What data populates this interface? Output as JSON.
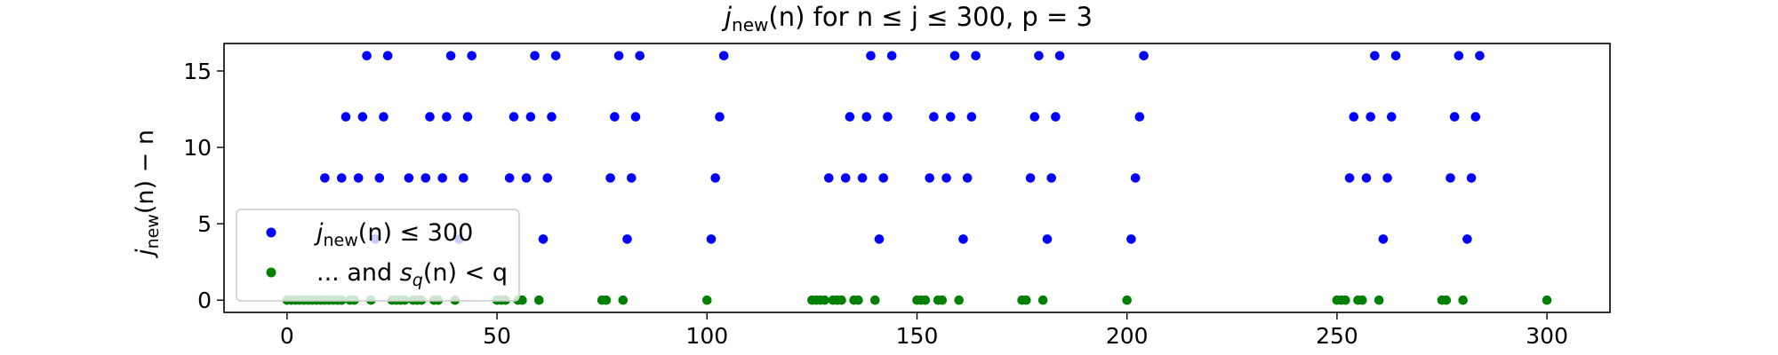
{
  "chart_data": {
    "type": "scatter",
    "title": "j_new(n) for n ≤ j ≤ 300, p = 3",
    "title_parts": {
      "j": "j",
      "sub": "new",
      "rest": "(n) for n ≤ j ≤ 300, p = 3"
    },
    "xlabel": "",
    "ylabel": "j_new(n) − n",
    "ylabel_parts": {
      "j": "j",
      "sub": "new",
      "rest": "(n) − n"
    },
    "xlim": [
      -15,
      315
    ],
    "ylim": [
      -0.8,
      16.8
    ],
    "x_ticks": [
      0,
      50,
      100,
      150,
      200,
      250,
      300
    ],
    "x_tick_labels": [
      "0",
      "50",
      "100",
      "150",
      "200",
      "250",
      "300"
    ],
    "y_ticks": [
      0,
      5,
      10,
      15
    ],
    "y_tick_labels": [
      "0",
      "5",
      "10",
      "15"
    ],
    "grid": false,
    "legend_position": "lower-left",
    "series": [
      {
        "name": "j_new(n) ≤ 300",
        "legend_parts": {
          "j": "j",
          "sub": "new",
          "rest": "(n) ≤ 300"
        },
        "color": "#0000ff",
        "points": [
          [
            19,
            16
          ],
          [
            24,
            16
          ],
          [
            39,
            16
          ],
          [
            44,
            16
          ],
          [
            59,
            16
          ],
          [
            64,
            16
          ],
          [
            79,
            16
          ],
          [
            84,
            16
          ],
          [
            104,
            16
          ],
          [
            139,
            16
          ],
          [
            144,
            16
          ],
          [
            159,
            16
          ],
          [
            164,
            16
          ],
          [
            179,
            16
          ],
          [
            184,
            16
          ],
          [
            204,
            16
          ],
          [
            259,
            16
          ],
          [
            264,
            16
          ],
          [
            279,
            16
          ],
          [
            284,
            16
          ],
          [
            14,
            12
          ],
          [
            18,
            12
          ],
          [
            23,
            12
          ],
          [
            34,
            12
          ],
          [
            38,
            12
          ],
          [
            43,
            12
          ],
          [
            54,
            12
          ],
          [
            58,
            12
          ],
          [
            63,
            12
          ],
          [
            78,
            12
          ],
          [
            83,
            12
          ],
          [
            103,
            12
          ],
          [
            134,
            12
          ],
          [
            138,
            12
          ],
          [
            143,
            12
          ],
          [
            154,
            12
          ],
          [
            158,
            12
          ],
          [
            163,
            12
          ],
          [
            178,
            12
          ],
          [
            183,
            12
          ],
          [
            203,
            12
          ],
          [
            254,
            12
          ],
          [
            258,
            12
          ],
          [
            263,
            12
          ],
          [
            278,
            12
          ],
          [
            283,
            12
          ],
          [
            9,
            8
          ],
          [
            13,
            8
          ],
          [
            17,
            8
          ],
          [
            22,
            8
          ],
          [
            29,
            8
          ],
          [
            33,
            8
          ],
          [
            37,
            8
          ],
          [
            42,
            8
          ],
          [
            53,
            8
          ],
          [
            57,
            8
          ],
          [
            62,
            8
          ],
          [
            77,
            8
          ],
          [
            82,
            8
          ],
          [
            102,
            8
          ],
          [
            129,
            8
          ],
          [
            133,
            8
          ],
          [
            137,
            8
          ],
          [
            142,
            8
          ],
          [
            153,
            8
          ],
          [
            157,
            8
          ],
          [
            162,
            8
          ],
          [
            177,
            8
          ],
          [
            182,
            8
          ],
          [
            202,
            8
          ],
          [
            253,
            8
          ],
          [
            257,
            8
          ],
          [
            262,
            8
          ],
          [
            277,
            8
          ],
          [
            282,
            8
          ],
          [
            21,
            4
          ],
          [
            41,
            4
          ],
          [
            61,
            4
          ],
          [
            81,
            4
          ],
          [
            101,
            4
          ],
          [
            141,
            4
          ],
          [
            161,
            4
          ],
          [
            181,
            4
          ],
          [
            201,
            4
          ],
          [
            261,
            4
          ],
          [
            281,
            4
          ]
        ]
      },
      {
        "name": "... and s_q(n) < q",
        "legend_parts": {
          "prefix": "... and ",
          "s": "s",
          "sub": "q",
          "rest": "(n) < q"
        },
        "color": "#008000",
        "points": [
          [
            0,
            0
          ],
          [
            1,
            0
          ],
          [
            2,
            0
          ],
          [
            3,
            0
          ],
          [
            4,
            0
          ],
          [
            5,
            0
          ],
          [
            6,
            0
          ],
          [
            7,
            0
          ],
          [
            8,
            0
          ],
          [
            9,
            0
          ],
          [
            10,
            0
          ],
          [
            11,
            0
          ],
          [
            12,
            0
          ],
          [
            13,
            0
          ],
          [
            15,
            0
          ],
          [
            16,
            0
          ],
          [
            20,
            0
          ],
          [
            25,
            0
          ],
          [
            26,
            0
          ],
          [
            27,
            0
          ],
          [
            28,
            0
          ],
          [
            30,
            0
          ],
          [
            31,
            0
          ],
          [
            32,
            0
          ],
          [
            35,
            0
          ],
          [
            36,
            0
          ],
          [
            40,
            0
          ],
          [
            50,
            0
          ],
          [
            51,
            0
          ],
          [
            52,
            0
          ],
          [
            55,
            0
          ],
          [
            56,
            0
          ],
          [
            60,
            0
          ],
          [
            75,
            0
          ],
          [
            76,
            0
          ],
          [
            80,
            0
          ],
          [
            100,
            0
          ],
          [
            125,
            0
          ],
          [
            126,
            0
          ],
          [
            127,
            0
          ],
          [
            128,
            0
          ],
          [
            130,
            0
          ],
          [
            131,
            0
          ],
          [
            132,
            0
          ],
          [
            135,
            0
          ],
          [
            136,
            0
          ],
          [
            140,
            0
          ],
          [
            150,
            0
          ],
          [
            151,
            0
          ],
          [
            152,
            0
          ],
          [
            155,
            0
          ],
          [
            156,
            0
          ],
          [
            160,
            0
          ],
          [
            175,
            0
          ],
          [
            176,
            0
          ],
          [
            180,
            0
          ],
          [
            200,
            0
          ],
          [
            250,
            0
          ],
          [
            251,
            0
          ],
          [
            252,
            0
          ],
          [
            255,
            0
          ],
          [
            256,
            0
          ],
          [
            260,
            0
          ],
          [
            275,
            0
          ],
          [
            276,
            0
          ],
          [
            280,
            0
          ],
          [
            300,
            0
          ]
        ]
      }
    ]
  }
}
